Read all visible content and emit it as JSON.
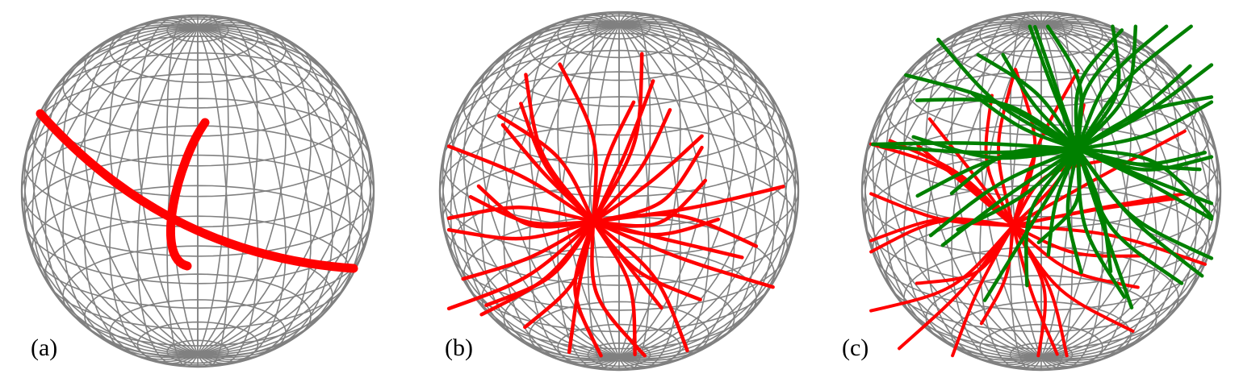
{
  "figure": {
    "colors": {
      "background": "#ffffff",
      "wireframe": "#808080",
      "trajectory_red": "#ff0000",
      "trajectory_green": "#008000",
      "label": "#000000"
    },
    "panels": [
      {
        "label": "(a)",
        "trajectory_colors": [
          "red"
        ]
      },
      {
        "label": "(b)",
        "trajectory_colors": [
          "red"
        ]
      },
      {
        "label": "(c)",
        "trajectory_colors": [
          "red",
          "green"
        ]
      }
    ]
  }
}
